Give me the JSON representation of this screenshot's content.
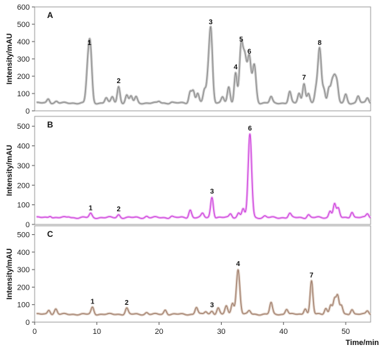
{
  "chart_data": {
    "type": "line",
    "xlabel": "Time/min",
    "xlim": [
      0,
      54
    ],
    "xticks": [
      0,
      10,
      20,
      30,
      40,
      50
    ],
    "panels": [
      {
        "label": "A",
        "ylabel": "Intensity/mAU",
        "ylim": [
          0,
          600
        ],
        "yticks": [
          0,
          100,
          200,
          300,
          400,
          500,
          600
        ],
        "baseline": 45,
        "color": "#8a8a8a",
        "glow": "#c8c8c8",
        "peaks": [
          [
            2.2,
            70
          ],
          [
            3.5,
            55
          ],
          [
            8.4,
            120
          ],
          [
            8.8,
            360
          ],
          [
            9.1,
            140
          ],
          [
            11.5,
            75
          ],
          [
            12.5,
            80
          ],
          [
            13.5,
            140
          ],
          [
            14.8,
            90
          ],
          [
            15.5,
            85
          ],
          [
            16.3,
            80
          ],
          [
            20,
            55
          ],
          [
            22,
            50
          ],
          [
            25,
            110
          ],
          [
            25.5,
            115
          ],
          [
            26.2,
            100
          ],
          [
            27.3,
            120
          ],
          [
            27.8,
            140
          ],
          [
            28.3,
            480
          ],
          [
            30.2,
            80
          ],
          [
            31.2,
            135
          ],
          [
            32.3,
            220
          ],
          [
            33.2,
            380
          ],
          [
            33.8,
            290
          ],
          [
            34.5,
            310
          ],
          [
            35.3,
            265
          ],
          [
            38,
            80
          ],
          [
            41,
            110
          ],
          [
            42.5,
            100
          ],
          [
            43.3,
            160
          ],
          [
            44,
            100
          ],
          [
            45.2,
            110
          ],
          [
            45.8,
            360
          ],
          [
            46.5,
            120
          ],
          [
            47.3,
            130
          ],
          [
            47.8,
            155
          ],
          [
            48.2,
            170
          ],
          [
            48.6,
            150
          ],
          [
            50,
            95
          ],
          [
            52,
            85
          ],
          [
            53.5,
            75
          ]
        ],
        "labels": [
          {
            "text": "1",
            "x": 8.8,
            "y": 360
          },
          {
            "text": "2",
            "x": 13.5,
            "y": 140
          },
          {
            "text": "3",
            "x": 28.3,
            "y": 480
          },
          {
            "text": "4",
            "x": 32.3,
            "y": 220
          },
          {
            "text": "5",
            "x": 33.2,
            "y": 380
          },
          {
            "text": "6",
            "x": 34.5,
            "y": 310
          },
          {
            "text": "7",
            "x": 43.3,
            "y": 160
          },
          {
            "text": "8",
            "x": 45.8,
            "y": 360
          }
        ]
      },
      {
        "label": "B",
        "ylabel": "Intensity/mAU",
        "ylim": [
          0,
          550
        ],
        "yticks": [
          0,
          100,
          200,
          300,
          400,
          500
        ],
        "baseline": 35,
        "color": "#c93bd6",
        "glow": "#f0b8f6",
        "peaks": [
          [
            2.5,
            45
          ],
          [
            5.5,
            40
          ],
          [
            9,
            55
          ],
          [
            13.5,
            50
          ],
          [
            18,
            42
          ],
          [
            22,
            42
          ],
          [
            25,
            75
          ],
          [
            27,
            55
          ],
          [
            28.5,
            140
          ],
          [
            31.5,
            55
          ],
          [
            32.8,
            60
          ],
          [
            33.5,
            80
          ],
          [
            34.6,
            460
          ],
          [
            37,
            42
          ],
          [
            41,
            55
          ],
          [
            44,
            50
          ],
          [
            47.5,
            70
          ],
          [
            48.2,
            105
          ],
          [
            48.8,
            80
          ],
          [
            51,
            65
          ],
          [
            53.5,
            55
          ]
        ],
        "labels": [
          {
            "text": "1",
            "x": 9,
            "y": 55
          },
          {
            "text": "2",
            "x": 13.5,
            "y": 50
          },
          {
            "text": "3",
            "x": 28.5,
            "y": 140
          },
          {
            "text": "6",
            "x": 34.6,
            "y": 460
          }
        ]
      },
      {
        "label": "C",
        "ylabel": "Intensity/mAU",
        "ylim": [
          0,
          550
        ],
        "yticks": [
          0,
          100,
          200,
          300,
          400,
          500
        ],
        "baseline": 45,
        "color": "#9c7a68",
        "glow": "#dccbbf",
        "peaks": [
          [
            2.3,
            70
          ],
          [
            3.4,
            75
          ],
          [
            9.3,
            85
          ],
          [
            14.8,
            80
          ],
          [
            18,
            55
          ],
          [
            21,
            70
          ],
          [
            26,
            85
          ],
          [
            27.5,
            60
          ],
          [
            28.5,
            65
          ],
          [
            29.5,
            80
          ],
          [
            30.8,
            90
          ],
          [
            31.8,
            110
          ],
          [
            32.7,
            300
          ],
          [
            34.5,
            65
          ],
          [
            38,
            110
          ],
          [
            40.5,
            75
          ],
          [
            43.5,
            80
          ],
          [
            44.5,
            235
          ],
          [
            46.8,
            80
          ],
          [
            47.6,
            100
          ],
          [
            48.2,
            130
          ],
          [
            48.7,
            145
          ],
          [
            49.3,
            95
          ],
          [
            51,
            75
          ],
          [
            53.5,
            65
          ]
        ],
        "labels": [
          {
            "text": "1",
            "x": 9.3,
            "y": 85
          },
          {
            "text": "2",
            "x": 14.8,
            "y": 80
          },
          {
            "text": "3",
            "x": 28.5,
            "y": 65
          },
          {
            "text": "4",
            "x": 32.7,
            "y": 300
          },
          {
            "text": "7",
            "x": 44.5,
            "y": 235
          }
        ]
      }
    ]
  }
}
